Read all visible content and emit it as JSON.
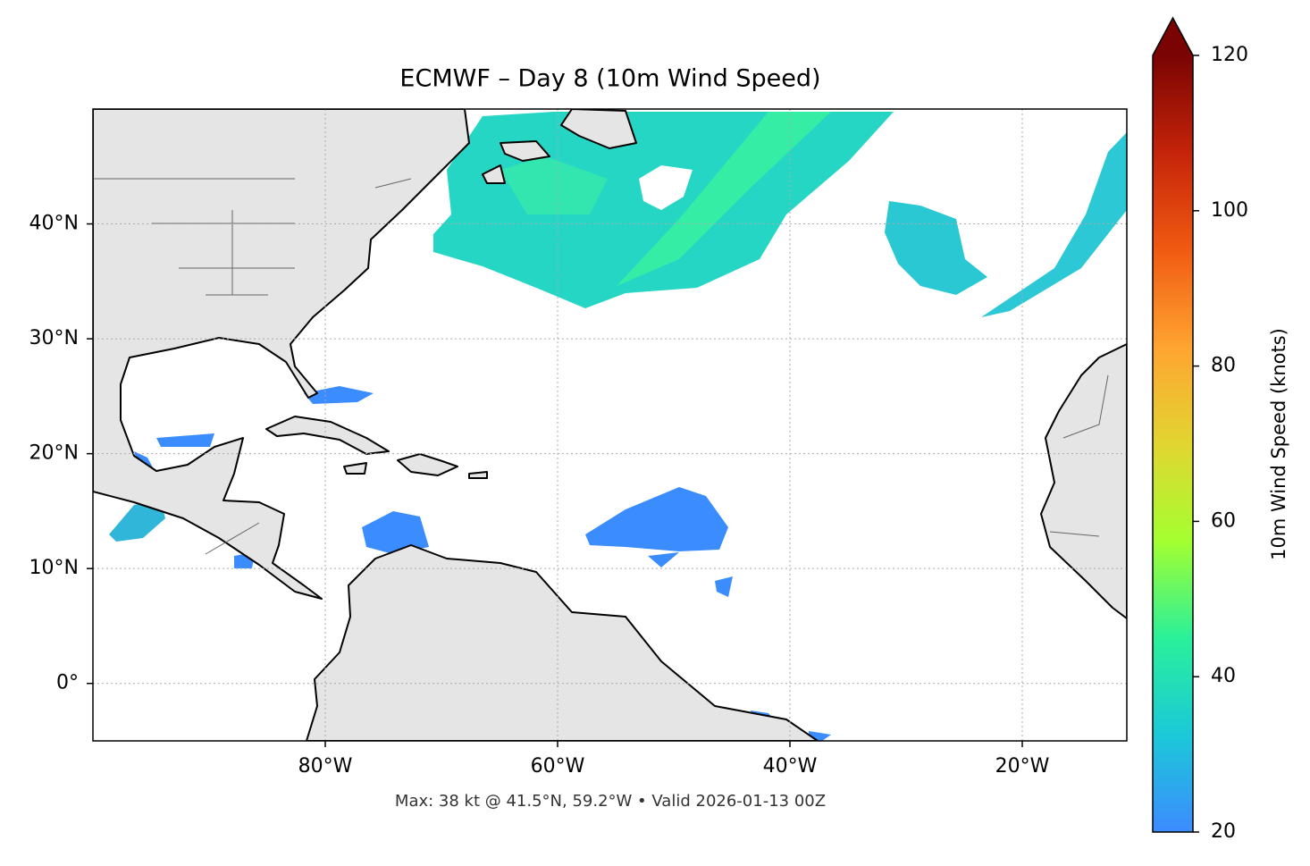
{
  "chart_data": {
    "type": "map",
    "title": "ECMWF – Day 8 (10m Wind Speed)",
    "footer": "Max: 38 kt @ 41.5°N, 59.2°W • Valid 2026-01-13 00Z",
    "xlim": [
      -100,
      -11
    ],
    "ylim": [
      -5,
      50
    ],
    "xticks": [
      {
        "value": -80,
        "label": "80°W"
      },
      {
        "value": -60,
        "label": "60°W"
      },
      {
        "value": -40,
        "label": "40°W"
      },
      {
        "value": -20,
        "label": "20°W"
      }
    ],
    "yticks": [
      {
        "value": 0,
        "label": "0°"
      },
      {
        "value": 10,
        "label": "10°N"
      },
      {
        "value": 20,
        "label": "20°N"
      },
      {
        "value": 30,
        "label": "30°N"
      },
      {
        "value": 40,
        "label": "40°N"
      }
    ],
    "grid": true,
    "colorbar": {
      "label": "10m Wind Speed (knots)",
      "lim": [
        20,
        120
      ],
      "ticks": [
        20,
        40,
        60,
        80,
        100,
        120
      ],
      "colors": [
        "#3d8bff",
        "#1bc9d8",
        "#2af09a",
        "#a4ff30",
        "#e2d531",
        "#ffa431",
        "#f05a12",
        "#c4240a",
        "#7a0403"
      ],
      "extend_color": "#7a0403"
    }
  }
}
